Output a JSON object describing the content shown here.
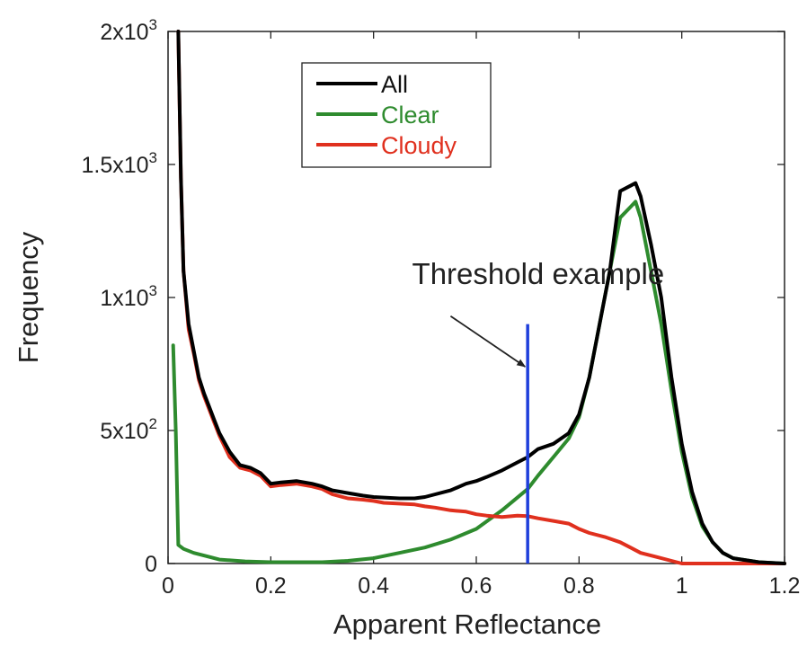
{
  "chart_data": {
    "type": "line",
    "title": "",
    "xlabel": "Apparent Reflectance",
    "ylabel": "Frequency",
    "xlim": [
      0,
      1.2
    ],
    "ylim": [
      0,
      2000
    ],
    "grid": false,
    "legend_position": "top-left",
    "x_ticks": [
      {
        "value": 0,
        "label": "0"
      },
      {
        "value": 0.2,
        "label": "0.2"
      },
      {
        "value": 0.4,
        "label": "0.4"
      },
      {
        "value": 0.6,
        "label": "0.6"
      },
      {
        "value": 0.8,
        "label": "0.8"
      },
      {
        "value": 1.0,
        "label": "1"
      },
      {
        "value": 1.2,
        "label": "1.2"
      }
    ],
    "y_ticks": [
      {
        "value": 0,
        "base": "0",
        "exp": ""
      },
      {
        "value": 500,
        "base": "5x10",
        "exp": "2"
      },
      {
        "value": 1000,
        "base": "1x10",
        "exp": "3"
      },
      {
        "value": 1500,
        "base": "1.5x10",
        "exp": "3"
      },
      {
        "value": 2000,
        "base": "2x10",
        "exp": "3"
      }
    ],
    "series": [
      {
        "name": "All",
        "color": "#000000",
        "x": [
          0.02,
          0.025,
          0.03,
          0.04,
          0.05,
          0.06,
          0.07,
          0.08,
          0.09,
          0.1,
          0.12,
          0.14,
          0.16,
          0.18,
          0.2,
          0.22,
          0.25,
          0.28,
          0.3,
          0.32,
          0.35,
          0.38,
          0.4,
          0.42,
          0.45,
          0.48,
          0.5,
          0.52,
          0.55,
          0.58,
          0.6,
          0.62,
          0.65,
          0.68,
          0.7,
          0.72,
          0.75,
          0.78,
          0.8,
          0.82,
          0.84,
          0.86,
          0.87,
          0.88,
          0.9,
          0.91,
          0.92,
          0.94,
          0.96,
          0.98,
          1.0,
          1.02,
          1.04,
          1.06,
          1.08,
          1.1,
          1.15,
          1.2
        ],
        "y": [
          2000,
          1450,
          1100,
          900,
          800,
          700,
          640,
          590,
          540,
          490,
          420,
          370,
          360,
          340,
          300,
          305,
          310,
          300,
          290,
          275,
          265,
          255,
          250,
          248,
          245,
          245,
          250,
          260,
          275,
          300,
          310,
          325,
          350,
          380,
          400,
          430,
          450,
          490,
          560,
          700,
          900,
          1100,
          1250,
          1400,
          1420,
          1430,
          1380,
          1200,
          1000,
          700,
          450,
          270,
          150,
          80,
          40,
          20,
          5,
          0
        ]
      },
      {
        "name": "Clear",
        "color": "#2e8b2e",
        "x": [
          0.01,
          0.015,
          0.02,
          0.03,
          0.05,
          0.08,
          0.1,
          0.15,
          0.2,
          0.25,
          0.3,
          0.35,
          0.4,
          0.45,
          0.5,
          0.55,
          0.6,
          0.65,
          0.7,
          0.72,
          0.75,
          0.78,
          0.8,
          0.82,
          0.84,
          0.86,
          0.88,
          0.9,
          0.91,
          0.92,
          0.94,
          0.96,
          0.98,
          1.0,
          1.02,
          1.04,
          1.06,
          1.08,
          1.1,
          1.15,
          1.2
        ],
        "y": [
          820,
          500,
          70,
          55,
          40,
          25,
          15,
          8,
          5,
          5,
          5,
          10,
          20,
          40,
          60,
          90,
          130,
          200,
          280,
          330,
          400,
          470,
          550,
          700,
          900,
          1100,
          1300,
          1340,
          1360,
          1300,
          1100,
          900,
          650,
          420,
          250,
          140,
          80,
          40,
          20,
          5,
          0
        ]
      },
      {
        "name": "Cloudy",
        "color": "#e0301e",
        "x": [
          0.02,
          0.025,
          0.03,
          0.04,
          0.05,
          0.06,
          0.07,
          0.08,
          0.09,
          0.1,
          0.12,
          0.14,
          0.16,
          0.18,
          0.2,
          0.22,
          0.25,
          0.28,
          0.3,
          0.32,
          0.35,
          0.38,
          0.4,
          0.42,
          0.45,
          0.48,
          0.5,
          0.52,
          0.55,
          0.58,
          0.6,
          0.62,
          0.65,
          0.68,
          0.7,
          0.72,
          0.75,
          0.78,
          0.8,
          0.82,
          0.85,
          0.88,
          0.9,
          0.92,
          0.95,
          0.98,
          1.0,
          1.05,
          1.1,
          1.2
        ],
        "y": [
          2000,
          1450,
          1100,
          880,
          790,
          690,
          630,
          580,
          530,
          480,
          400,
          360,
          350,
          330,
          290,
          295,
          300,
          290,
          280,
          260,
          245,
          240,
          235,
          228,
          225,
          222,
          215,
          210,
          200,
          195,
          185,
          180,
          175,
          180,
          178,
          170,
          160,
          150,
          130,
          115,
          100,
          80,
          60,
          40,
          25,
          10,
          0,
          0,
          0,
          0
        ]
      }
    ],
    "threshold": {
      "x": 0.7,
      "y_max": 900,
      "color": "#1f3fdb"
    },
    "annotation": {
      "text": "Threshold example",
      "x": 0.475,
      "y": 1050,
      "arrow_from": [
        0.55,
        930
      ],
      "arrow_to": [
        0.695,
        740
      ]
    }
  }
}
